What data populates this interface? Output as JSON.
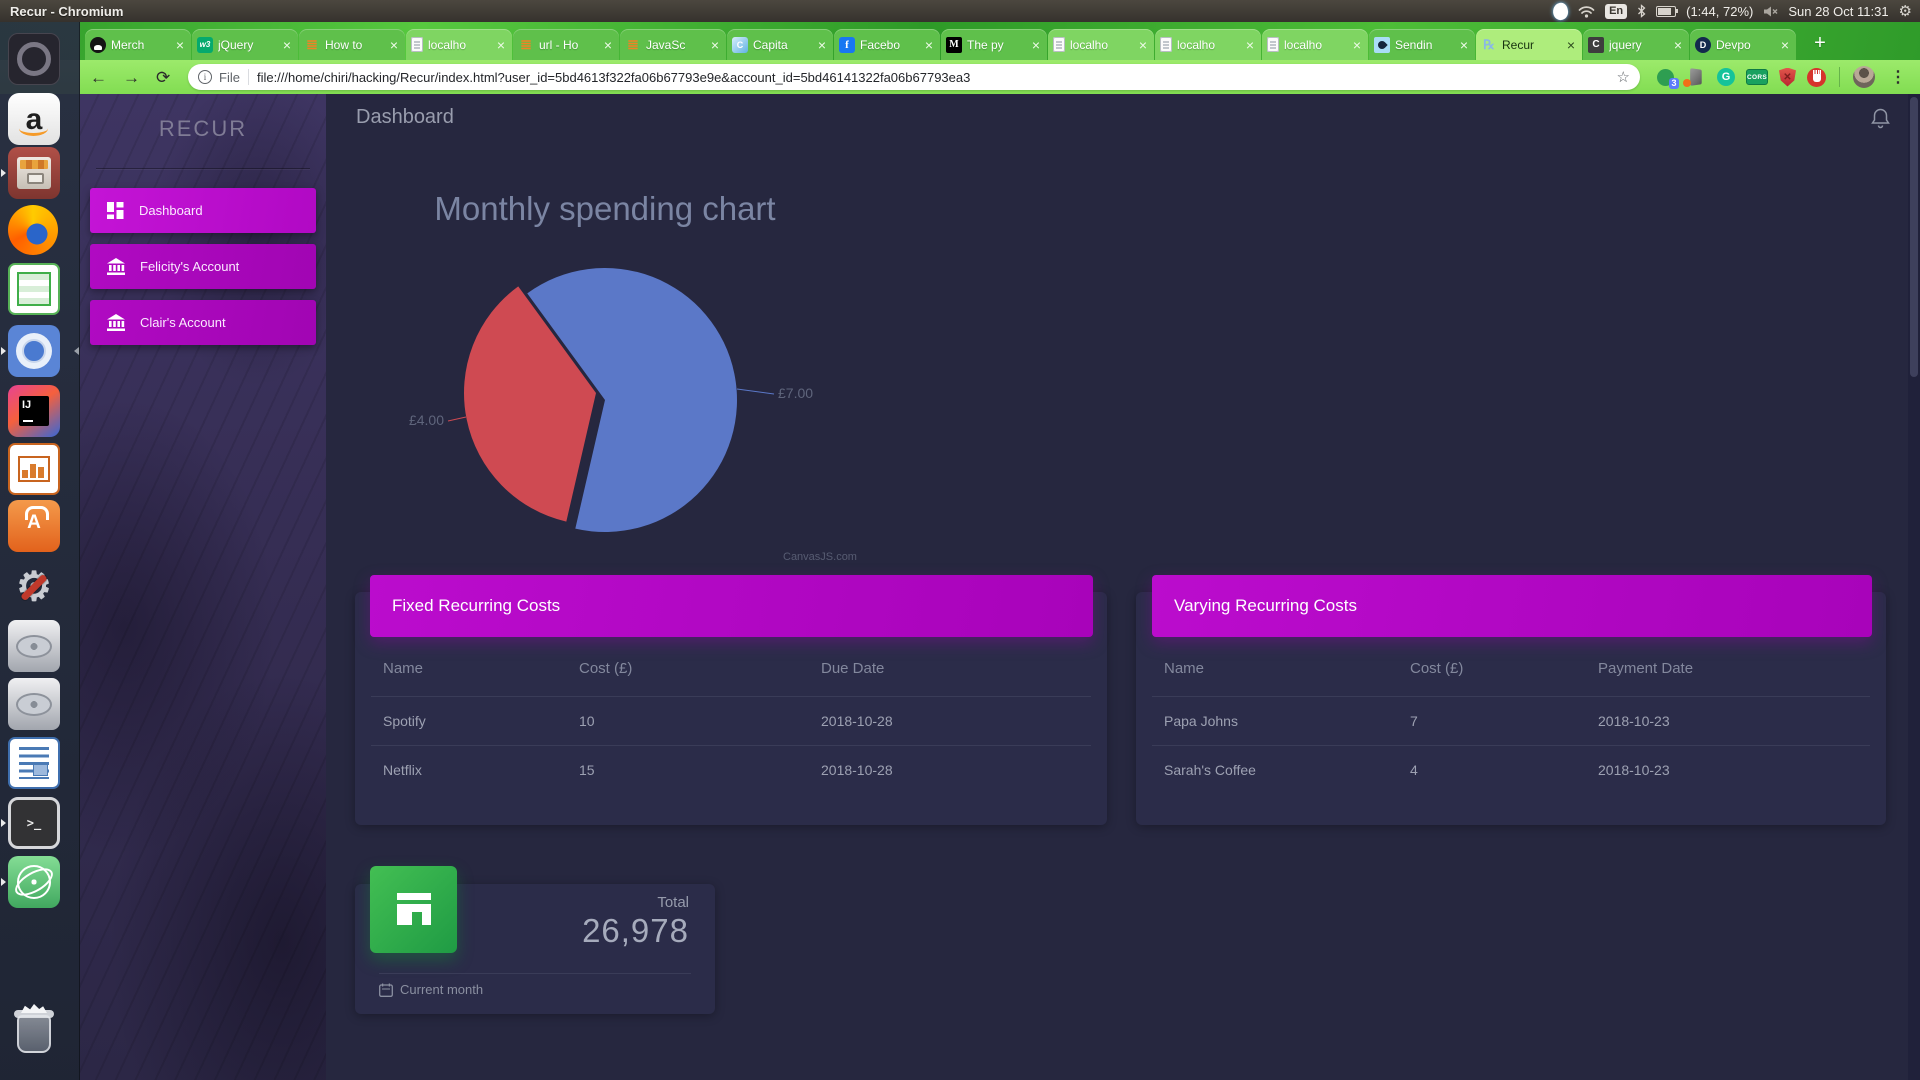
{
  "system": {
    "window_title": "Recur - Chromium",
    "keyboard_indicator": "En",
    "battery_status": "(1:44, 72%)",
    "clock": "Sun 28 Oct 11:31",
    "tray_icons": [
      "messenger-blob-icon",
      "wifi-icon",
      "keyboard-layout-badge",
      "bluetooth-icon",
      "battery-icon",
      "volume-muted-icon",
      "session-gear-icon"
    ]
  },
  "browser": {
    "tabs": [
      {
        "label": "Merch",
        "icon": "github"
      },
      {
        "label": "jQuery",
        "icon": "w3schools"
      },
      {
        "label": "How to",
        "icon": "stackoverflow"
      },
      {
        "label": "localho",
        "icon": "document"
      },
      {
        "label": "url - Ho",
        "icon": "stackoverflow"
      },
      {
        "label": "JavaSc",
        "icon": "stackoverflow"
      },
      {
        "label": "Capita",
        "icon": "capital-bank"
      },
      {
        "label": "Facebo",
        "icon": "facebook"
      },
      {
        "label": "The py",
        "icon": "medium"
      },
      {
        "label": "localho",
        "icon": "document"
      },
      {
        "label": "localho",
        "icon": "document"
      },
      {
        "label": "localho",
        "icon": "document"
      },
      {
        "label": "Sendin",
        "icon": "sendinblue"
      },
      {
        "label": "Recur",
        "icon": "recur",
        "active": true
      },
      {
        "label": "jquery",
        "icon": "c-docs"
      },
      {
        "label": "Devpo",
        "icon": "devpost"
      }
    ],
    "close_glyph": "×",
    "new_tab_glyph": "+",
    "nav": {
      "back": "←",
      "forward": "→",
      "reload": "⟳"
    },
    "address": {
      "scheme_label": "File",
      "url": "file:///home/chiri/hacking/Recur/index.html?user_id=5bd4613f322fa06b67793e9e&account_id=5bd46141322fa06b67793ea3",
      "bookmark_star": "☆",
      "info_glyph": "i"
    },
    "extensions": {
      "badge_count": "3",
      "cors_label": "CORS",
      "shield_glyph": "✕"
    },
    "menu_dots": "⋮"
  },
  "dock": {
    "items": [
      "app-launcher",
      "amazon",
      "file-archive",
      "firefox",
      "libreoffice-calc",
      "chromium",
      "intellij-idea",
      "libreoffice-impress",
      "ubuntu-software",
      "system-settings",
      "disk-drive",
      "disk-drive",
      "libreoffice-writer",
      "terminal",
      "atom",
      "trash"
    ]
  },
  "icon_glyphs": {
    "stackoverflow": "≣",
    "w3schools": "w3",
    "facebook": "f",
    "medium": "M",
    "capital": "C",
    "recur": "℞",
    "c_docs": "C",
    "devpost": "D",
    "grammarly": "G",
    "amazon": "a",
    "software_a": "A",
    "intellij": "IJ",
    "terminal_prompt": ">_",
    "settings_gear": "⚙",
    "tray_gear": "⚙"
  },
  "app": {
    "brand": "RECUR",
    "nav": [
      {
        "label": "Dashboard",
        "icon": "dashboard-grid"
      },
      {
        "label": "Felicity's Account",
        "icon": "bank"
      },
      {
        "label": "Clair's Account",
        "icon": "bank"
      }
    ],
    "page_title": "Dashboard",
    "watermark": "CanvasJS.com",
    "fixed_card": {
      "title": "Fixed Recurring Costs",
      "columns": [
        "Name",
        "Cost (£)",
        "Due Date"
      ],
      "rows": [
        [
          "Spotify",
          "10",
          "2018-10-28"
        ],
        [
          "Netflix",
          "15",
          "2018-10-28"
        ]
      ]
    },
    "varying_card": {
      "title": "Varying Recurring Costs",
      "columns": [
        "Name",
        "Cost (£)",
        "Payment Date"
      ],
      "rows": [
        [
          "Papa Johns",
          "7",
          "2018-10-23"
        ],
        [
          "Sarah's Coffee",
          "4",
          "2018-10-23"
        ]
      ]
    },
    "total_card": {
      "label": "Total",
      "value": "26,978",
      "footer": "Current month"
    }
  },
  "chart_data": {
    "type": "pie",
    "title": "Monthly spending chart",
    "start_angle_deg": 103,
    "slices": [
      {
        "label": "£4.00",
        "value": 4,
        "color": "#cf4a52",
        "exploded": true
      },
      {
        "label": "£7.00",
        "value": 7,
        "color": "#5b78c8",
        "exploded": false
      }
    ],
    "legend": "none",
    "credit": "CanvasJS.com"
  },
  "colors": {
    "page_bg": "#26273f",
    "card_bg": "#2b2c49",
    "accent_magenta": "#b109c4",
    "pie_blue": "#5b78c8",
    "pie_red": "#cf4a52",
    "total_green": "#27a848"
  }
}
